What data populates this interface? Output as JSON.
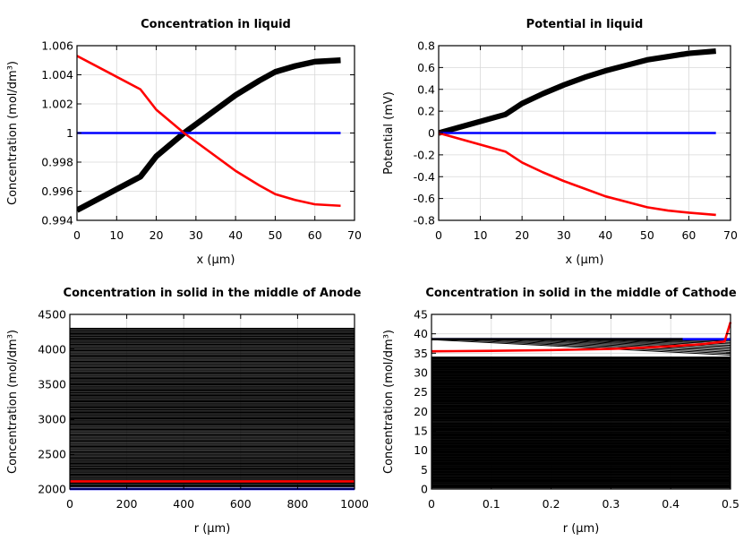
{
  "chart_data": [
    {
      "type": "line",
      "title": "Concentration in liquid",
      "xlabel": "x (µm)",
      "ylabel": "Concentration (mol/dm³)",
      "xlim": [
        0,
        70
      ],
      "ylim": [
        0.994,
        1.006
      ],
      "xticks": [
        0,
        10,
        20,
        30,
        40,
        50,
        60,
        70
      ],
      "xtick_labels": [
        "0",
        "10",
        "20",
        "30",
        "40",
        "50",
        "60",
        "70"
      ],
      "yticks": [
        0.994,
        0.996,
        0.998,
        1,
        1.002,
        1.004,
        1.006
      ],
      "ytick_labels": [
        "0.994",
        "0.996",
        "0.998",
        "1",
        "1.002",
        "1.004",
        "1.006"
      ],
      "grid": true,
      "series": [
        {
          "color": "#000000",
          "band": 0.00012,
          "x": [
            0,
            16,
            20,
            27,
            33,
            40,
            46,
            50,
            55,
            60,
            66.5
          ],
          "y": [
            0.9947,
            0.997,
            0.9984,
            1.0,
            1.0012,
            1.0026,
            1.0036,
            1.0042,
            1.0046,
            1.0049,
            1.005
          ]
        },
        {
          "color": "#0000ff",
          "x": [
            0,
            66.5
          ],
          "y": [
            1.0,
            1.0
          ]
        },
        {
          "color": "#ff0000",
          "x": [
            0,
            16,
            20,
            27,
            33,
            40,
            46,
            50,
            55,
            60,
            66.5
          ],
          "y": [
            1.0053,
            1.003,
            1.0016,
            1.0,
            0.9988,
            0.9974,
            0.9964,
            0.9958,
            0.9954,
            0.9951,
            0.995
          ]
        }
      ]
    },
    {
      "type": "line",
      "title": "Potential in liquid",
      "xlabel": "x (µm)",
      "ylabel": "Potential (mV)",
      "xlim": [
        0,
        70
      ],
      "ylim": [
        -0.8,
        0.8
      ],
      "xticks": [
        0,
        10,
        20,
        30,
        40,
        50,
        60,
        70
      ],
      "xtick_labels": [
        "0",
        "10",
        "20",
        "30",
        "40",
        "50",
        "60",
        "70"
      ],
      "yticks": [
        -0.8,
        -0.6,
        -0.4,
        -0.2,
        0,
        0.2,
        0.4,
        0.6,
        0.8
      ],
      "ytick_labels": [
        "-0.8",
        "-0.6",
        "-0.4",
        "-0.2",
        "0",
        "0.2",
        "0.4",
        "0.6",
        "0.8"
      ],
      "grid": true,
      "series": [
        {
          "color": "#000000",
          "band": 0.015,
          "x": [
            0,
            16,
            20,
            25,
            30,
            35,
            40,
            45,
            50,
            55,
            60,
            66.5
          ],
          "y": [
            0,
            0.17,
            0.27,
            0.36,
            0.44,
            0.51,
            0.57,
            0.62,
            0.67,
            0.7,
            0.73,
            0.75
          ]
        },
        {
          "color": "#0000ff",
          "x": [
            0,
            66.5
          ],
          "y": [
            0,
            0
          ]
        },
        {
          "color": "#ff0000",
          "x": [
            0,
            16,
            20,
            25,
            30,
            35,
            40,
            45,
            50,
            55,
            60,
            66.5
          ],
          "y": [
            0,
            -0.17,
            -0.27,
            -0.36,
            -0.44,
            -0.51,
            -0.58,
            -0.63,
            -0.68,
            -0.71,
            -0.73,
            -0.75
          ]
        }
      ]
    },
    {
      "type": "line",
      "title": "Concentration in solid in the middle of Anode",
      "xlabel": "r (µm)",
      "ylabel": "Concentration (mol/dm³)",
      "xlim": [
        0,
        1000
      ],
      "ylim": [
        2000,
        4500
      ],
      "xticks": [
        0,
        200,
        400,
        600,
        800,
        1000
      ],
      "xtick_labels": [
        "0",
        "200",
        "400",
        "600",
        "800",
        "1000"
      ],
      "yticks": [
        2000,
        2500,
        3000,
        3500,
        4000,
        4500
      ],
      "ytick_labels": [
        "2000",
        "2500",
        "3000",
        "3500",
        "4000",
        "4500"
      ],
      "grid": true,
      "flat_black_levels": {
        "from": 2030,
        "to": 4300,
        "count": 150,
        "color": "#000000"
      },
      "series": [
        {
          "color": "#ff0000",
          "x": [
            0,
            1000
          ],
          "y": [
            2110,
            2110
          ]
        },
        {
          "color": "#0000ff",
          "x": [
            0,
            1000
          ],
          "y": [
            2000,
            2000
          ]
        }
      ]
    },
    {
      "type": "line",
      "title": "Concentration in solid in the middle of Cathode",
      "xlabel": "r (µm)",
      "ylabel": "Concentration (mol/dm³)",
      "xlim": [
        0,
        0.5
      ],
      "ylim": [
        0,
        45
      ],
      "xticks": [
        0,
        0.1,
        0.2,
        0.3,
        0.4,
        0.5
      ],
      "xtick_labels": [
        "0",
        "0.1",
        "0.2",
        "0.3",
        "0.4",
        "0.5"
      ],
      "yticks": [
        0,
        5,
        10,
        15,
        20,
        25,
        30,
        35,
        40,
        45
      ],
      "ytick_labels": [
        "0",
        "5",
        "10",
        "15",
        "20",
        "25",
        "30",
        "35",
        "40",
        "45"
      ],
      "grid": true,
      "flat_black_levels": {
        "from": 0.3,
        "to": 34,
        "count": 170,
        "color": "#000000"
      },
      "sloped_black_lines": {
        "start_y": 38.5,
        "end_y_range": [
          34.5,
          38.5
        ],
        "count": 12,
        "color": "#000000"
      },
      "series": [
        {
          "color": "#0000ff",
          "x": [
            0,
            0.5
          ],
          "y": [
            38.6,
            38.6
          ]
        },
        {
          "color": "#000000",
          "x": [
            0,
            0.42
          ],
          "y": [
            38.6,
            38.6
          ]
        },
        {
          "color": "#ff0000",
          "x": [
            0,
            0.1,
            0.2,
            0.3,
            0.35,
            0.4,
            0.45,
            0.49,
            0.5
          ],
          "y": [
            35.5,
            35.6,
            35.8,
            36.1,
            36.4,
            36.8,
            37.3,
            38.0,
            43.0
          ]
        }
      ]
    }
  ]
}
